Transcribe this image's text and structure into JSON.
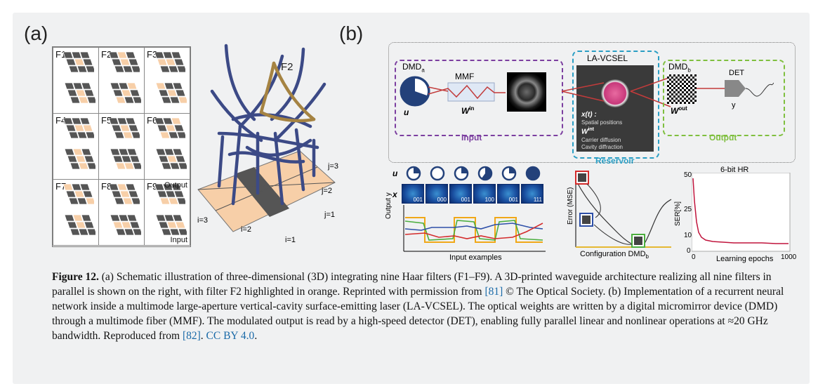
{
  "panel_a": {
    "label": "(a)",
    "filters": [
      "F1",
      "F2",
      "F3",
      "F4",
      "F5",
      "F6",
      "F7",
      "F8",
      "F9"
    ],
    "output_label": "Output",
    "input_label": "Input",
    "highlight_label": "F2",
    "i_labels": [
      "i=3",
      "i=2",
      "i=1"
    ],
    "j_labels": [
      "j=3",
      "j=2",
      "j=1"
    ],
    "colors": {
      "dark": "#555555",
      "light": "#f7cfa8",
      "blue": "#3c4a86",
      "orange": "#a58342"
    }
  },
  "panel_b": {
    "label": "(b)",
    "dmda": "DMD",
    "dmda_sub": "a",
    "u_label": "u",
    "mmf": "MMF",
    "w_in": "W",
    "w_in_sup": "in",
    "input_box": "Input",
    "lavcsel": "LA-VCSEL",
    "x_t": "x(t) :",
    "spatial": "Spatial positions",
    "w_int": "W",
    "w_int_sup": "int",
    "carrier": "Carrier diffusion",
    "cavity": "Cavity diffraction",
    "reservoir_box": "Reservoir",
    "dmdb": "DMD",
    "dmdb_sub": "b",
    "w_out": "W",
    "w_out_sup": "out",
    "det": "DET",
    "y_label": "y",
    "output_box": "Output",
    "u_row": "u",
    "x_row": "x",
    "codes": [
      "001",
      "000",
      "001",
      "100",
      "001",
      "111"
    ],
    "output_y": "Output y",
    "input_examples": "Input examples",
    "error_mse": "Error (MSE)",
    "config": "Configuration DMD",
    "config_sub": "b",
    "ser_title": "6-bit HR",
    "ser_ylabel": "SER[%]",
    "ser_xlabel": "Learning epochs",
    "ser_yticks": [
      "50",
      "25",
      "10",
      "0"
    ],
    "ser_xticks": [
      "0",
      "1000"
    ]
  },
  "caption": {
    "fig": "Figure 12.",
    "t1": " (a) Schematic illustration of three-dimensional (3D) integrating nine Haar filters (F1–F9). A 3D-printed waveguide architecture realizing all nine filters in parallel is shown on the right, with filter F2 highlighted in orange. Reprinted with permission from ",
    "ref1": "[81]",
    "t2": " © The Optical Society. (b) Implementation of a recurrent neural network inside a multimode large-aperture vertical-cavity surface-emitting laser (LA-VCSEL). The optical weights are written by a digital micromirror device (DMD) through a multimode fiber (MMF). The modulated output is read by a high-speed detector (DET), enabling fully parallel linear and nonlinear operations at ≈20 GHz bandwidth. Reproduced from ",
    "ref2": "[82]",
    "t3": ". ",
    "license": "CC BY 4.0",
    "t4": "."
  }
}
